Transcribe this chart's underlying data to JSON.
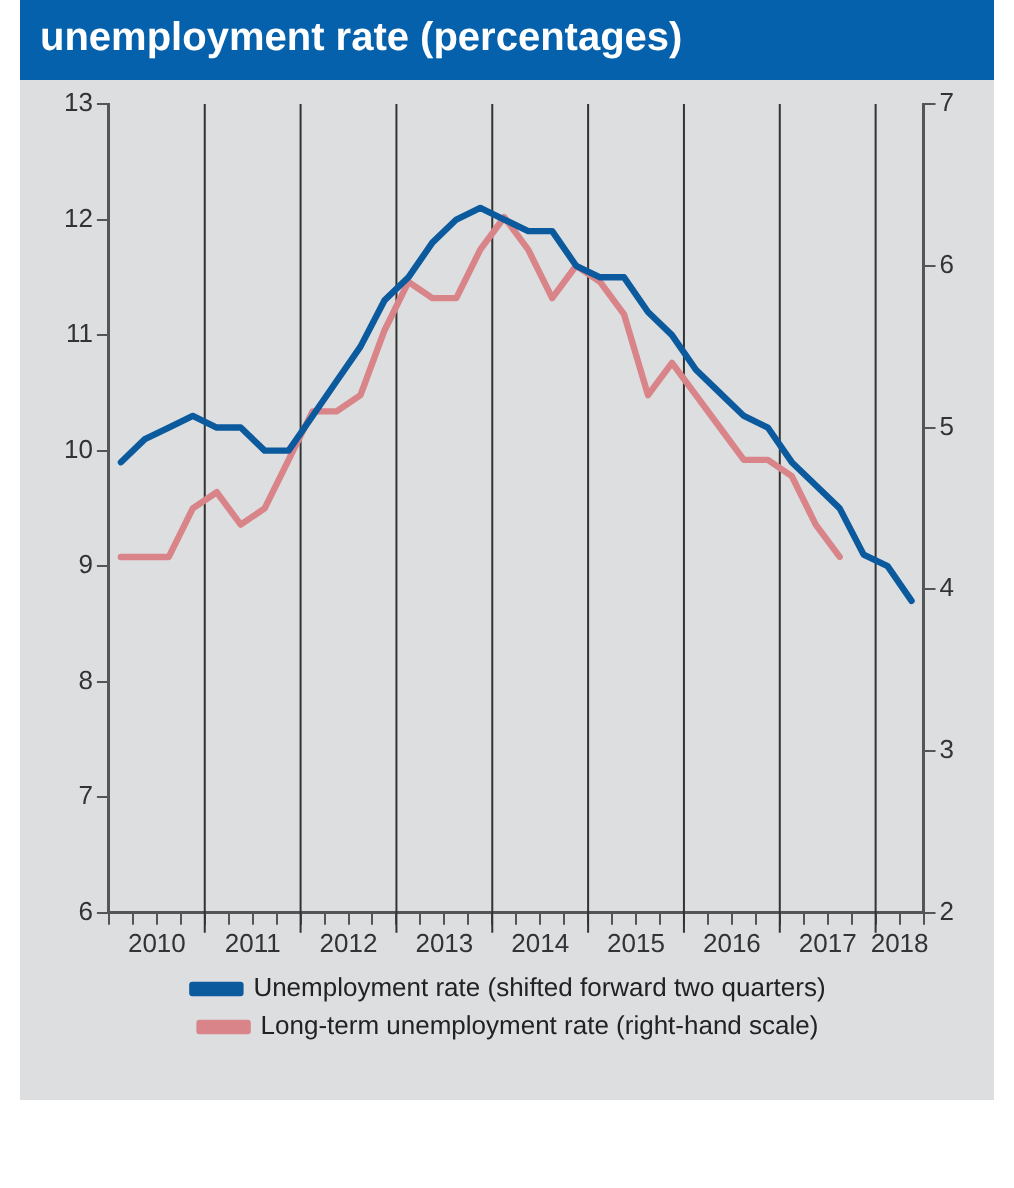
{
  "chart_data": {
    "type": "line",
    "title": "unemployment rate (percentages)",
    "x": [
      2010.125,
      2010.375,
      2010.625,
      2010.875,
      2011.125,
      2011.375,
      2011.625,
      2011.875,
      2012.125,
      2012.375,
      2012.625,
      2012.875,
      2013.125,
      2013.375,
      2013.625,
      2013.875,
      2014.125,
      2014.375,
      2014.625,
      2014.875,
      2015.125,
      2015.375,
      2015.625,
      2015.875,
      2016.125,
      2016.375,
      2016.625,
      2016.875,
      2017.125,
      2017.375,
      2017.625,
      2017.875,
      2018.125,
      2018.375
    ],
    "series": [
      {
        "name": "Unemployment rate (shifted forward two quarters)",
        "color": "#0b5a9e",
        "values": [
          9.9,
          10.1,
          10.2,
          10.3,
          10.2,
          10.2,
          10.0,
          10.0,
          10.3,
          10.6,
          10.9,
          11.3,
          11.5,
          11.8,
          12.0,
          12.1,
          12.0,
          11.9,
          11.9,
          11.6,
          11.5,
          11.5,
          11.2,
          11.0,
          10.7,
          10.5,
          10.3,
          10.2,
          9.9,
          9.7,
          9.5,
          9.1,
          9.0,
          8.7
        ]
      },
      {
        "name": "Long-term unemployment rate (right-hand scale)",
        "color": "#d98489",
        "axis": "y2",
        "values": [
          4.2,
          4.2,
          4.2,
          4.5,
          4.6,
          4.4,
          4.5,
          4.8,
          5.1,
          5.1,
          5.2,
          5.6,
          5.9,
          5.8,
          5.8,
          6.1,
          6.3,
          6.1,
          5.8,
          6.0,
          5.9,
          5.7,
          5.2,
          5.4,
          5.2,
          5.0,
          4.8,
          4.8,
          4.7,
          4.4,
          4.2,
          null,
          null,
          null
        ]
      }
    ],
    "xlim": [
      2010,
      2018.5
    ],
    "xticks": [
      {
        "value": 2010,
        "label": null
      },
      {
        "value": 2010.25,
        "label": null
      },
      {
        "value": 2010.5,
        "label": "2010"
      },
      {
        "value": 2010.75,
        "label": null
      },
      {
        "value": 2011,
        "label": null
      },
      {
        "value": 2011.25,
        "label": null
      },
      {
        "value": 2011.5,
        "label": "2011"
      },
      {
        "value": 2011.75,
        "label": null
      },
      {
        "value": 2012,
        "label": null
      },
      {
        "value": 2012.25,
        "label": null
      },
      {
        "value": 2012.5,
        "label": "2012"
      },
      {
        "value": 2012.75,
        "label": null
      },
      {
        "value": 2013,
        "label": null
      },
      {
        "value": 2013.25,
        "label": null
      },
      {
        "value": 2013.5,
        "label": "2013"
      },
      {
        "value": 2013.75,
        "label": null
      },
      {
        "value": 2014,
        "label": null
      },
      {
        "value": 2014.25,
        "label": null
      },
      {
        "value": 2014.5,
        "label": "2014"
      },
      {
        "value": 2014.75,
        "label": null
      },
      {
        "value": 2015,
        "label": null
      },
      {
        "value": 2015.25,
        "label": null
      },
      {
        "value": 2015.5,
        "label": "2015"
      },
      {
        "value": 2015.75,
        "label": null
      },
      {
        "value": 2016,
        "label": null
      },
      {
        "value": 2016.25,
        "label": null
      },
      {
        "value": 2016.5,
        "label": "2016"
      },
      {
        "value": 2016.75,
        "label": null
      },
      {
        "value": 2017,
        "label": null
      },
      {
        "value": 2017.25,
        "label": null
      },
      {
        "value": 2017.5,
        "label": "2017"
      },
      {
        "value": 2017.75,
        "label": null
      },
      {
        "value": 2018,
        "label": null
      },
      {
        "value": 2018.25,
        "label": "2018"
      },
      {
        "value": 2018.5,
        "label": null
      }
    ],
    "ylim": [
      6,
      13
    ],
    "yticks": [
      6,
      7,
      8,
      9,
      10,
      11,
      12,
      13
    ],
    "y2lim": [
      2,
      7
    ],
    "y2ticks": [
      2,
      3,
      4,
      5,
      6,
      7
    ],
    "ref_lines": [
      {
        "axis": "x",
        "value": 2011,
        "color": "#333333"
      },
      {
        "axis": "x",
        "value": 2012,
        "color": "#333333"
      },
      {
        "axis": "x",
        "value": 2013,
        "color": "#333333"
      },
      {
        "axis": "x",
        "value": 2014,
        "color": "#333333"
      },
      {
        "axis": "x",
        "value": 2015,
        "color": "#333333"
      },
      {
        "axis": "x",
        "value": 2016,
        "color": "#333333"
      },
      {
        "axis": "x",
        "value": 2017,
        "color": "#333333"
      },
      {
        "axis": "x",
        "value": 2018,
        "color": "#333333"
      }
    ],
    "legend": "bottom",
    "marker": "none",
    "line_style": "solid"
  }
}
